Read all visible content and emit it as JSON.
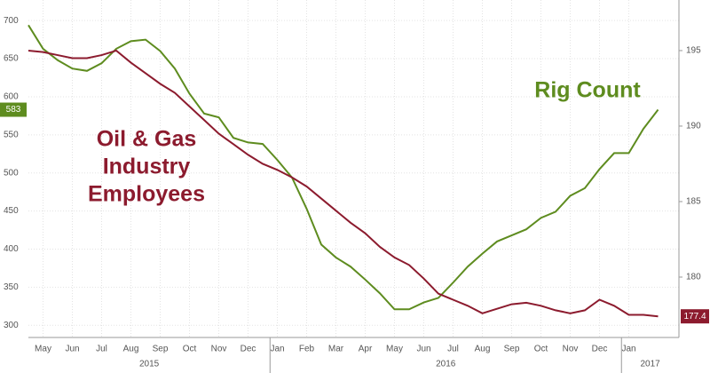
{
  "chart_data": {
    "type": "line",
    "categories": [
      null,
      "May",
      null,
      "Jun",
      null,
      "Jul",
      null,
      "Aug",
      null,
      "Sep",
      null,
      "Oct",
      null,
      "Nov",
      null,
      "Dec",
      null,
      "Jan",
      null,
      "Feb",
      null,
      "Mar",
      null,
      "Apr",
      null,
      "May",
      null,
      "Jun",
      null,
      "Jul",
      null,
      "Aug",
      null,
      "Sep",
      null,
      "Oct",
      null,
      "Nov",
      null,
      "Dec",
      null,
      "Jan",
      null,
      null
    ],
    "year_labels": [
      "2015",
      "2016",
      "2017"
    ],
    "series": [
      {
        "name": "Rig Count",
        "color": "#5e8c1f",
        "axis": "y",
        "values": [
          694,
          663,
          648,
          637,
          634,
          644,
          663,
          673,
          675,
          660,
          637,
          604,
          578,
          573,
          546,
          540,
          538,
          517,
          494,
          453,
          406,
          389,
          377,
          360,
          342,
          321,
          321,
          330,
          336,
          356,
          377,
          394,
          410,
          418,
          426,
          441,
          449,
          470,
          480,
          505,
          526,
          526,
          558,
          583
        ]
      },
      {
        "name": "Oil & Gas Industry Employees",
        "color": "#8c1b2e",
        "axis": "y2",
        "values": [
          195.0,
          194.9,
          194.7,
          194.5,
          194.5,
          194.7,
          195.0,
          194.2,
          193.5,
          192.8,
          192.2,
          191.3,
          190.4,
          189.5,
          188.8,
          188.1,
          187.5,
          187.1,
          186.6,
          186.0,
          185.2,
          184.4,
          183.6,
          182.9,
          182.0,
          181.3,
          180.8,
          179.9,
          178.9,
          178.5,
          178.1,
          177.6,
          177.9,
          178.2,
          178.3,
          178.1,
          177.8,
          177.6,
          177.8,
          178.5,
          178.1,
          177.5,
          177.5,
          177.4
        ]
      }
    ],
    "annotations": [
      [
        "Rig Count"
      ],
      [
        "Oil & Gas",
        "Industry",
        "Employees"
      ]
    ],
    "ylim": [
      284,
      727
    ],
    "yticks": [
      300,
      350,
      400,
      450,
      500,
      550,
      600,
      650,
      700
    ],
    "y2lim": [
      176,
      198.35
    ],
    "y2ticks": [
      180,
      185,
      190,
      195
    ],
    "grid": true
  }
}
